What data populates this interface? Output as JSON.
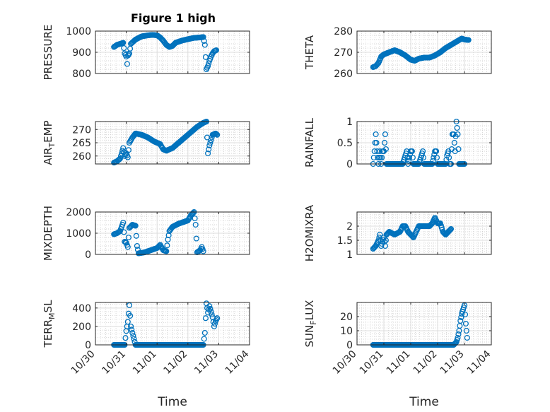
{
  "figure": {
    "title": "Figure 1 high"
  },
  "colors": {
    "marker": "#0072BD",
    "axis": "#262626",
    "grid": "#dcdcdc"
  },
  "chart_data": [
    {
      "id": "pressure",
      "type": "scatter",
      "ylabel": "PRESSURE",
      "xlabel": "",
      "xlim": [
        0,
        5
      ],
      "ylim": [
        800,
        1000
      ],
      "yticks": [
        800,
        900,
        1000
      ],
      "ytick_labels": [
        "800",
        "900",
        "1000"
      ],
      "xticks": [
        0,
        1,
        2,
        3,
        4,
        5
      ],
      "xtick_labels": [],
      "keypoints": [
        [
          0.6,
          925
        ],
        [
          0.7,
          935
        ],
        [
          0.8,
          940
        ],
        [
          0.85,
          942
        ],
        [
          0.9,
          945
        ],
        [
          0.95,
          895
        ],
        [
          1.0,
          880
        ],
        [
          1.03,
          845
        ],
        [
          1.06,
          885
        ],
        [
          1.1,
          895
        ],
        [
          1.15,
          940
        ],
        [
          1.3,
          960
        ],
        [
          1.5,
          975
        ],
        [
          1.7,
          980
        ],
        [
          1.85,
          982
        ],
        [
          2.0,
          980
        ],
        [
          2.1,
          970
        ],
        [
          2.2,
          955
        ],
        [
          2.3,
          935
        ],
        [
          2.4,
          925
        ],
        [
          2.5,
          930
        ],
        [
          2.6,
          945
        ],
        [
          2.8,
          955
        ],
        [
          3.0,
          962
        ],
        [
          3.2,
          968
        ],
        [
          3.4,
          970
        ],
        [
          3.5,
          972
        ],
        [
          3.55,
          935
        ],
        [
          3.6,
          820
        ],
        [
          3.65,
          835
        ],
        [
          3.7,
          860
        ],
        [
          3.75,
          880
        ],
        [
          3.8,
          895
        ],
        [
          3.85,
          905
        ],
        [
          3.92,
          910
        ]
      ]
    },
    {
      "id": "theta",
      "type": "scatter",
      "ylabel": "THETA",
      "xlabel": "",
      "xlim": [
        0,
        5
      ],
      "ylim": [
        260,
        280
      ],
      "yticks": [
        260,
        270,
        280
      ],
      "ytick_labels": [
        "260",
        "270",
        "280"
      ],
      "xticks": [
        0,
        1,
        2,
        3,
        4,
        5
      ],
      "xtick_labels": [],
      "keypoints": [
        [
          0.6,
          263
        ],
        [
          0.7,
          263.5
        ],
        [
          0.8,
          265
        ],
        [
          0.9,
          268
        ],
        [
          1.0,
          269
        ],
        [
          1.2,
          270
        ],
        [
          1.4,
          271
        ],
        [
          1.6,
          270
        ],
        [
          1.8,
          268.5
        ],
        [
          2.0,
          266.5
        ],
        [
          2.15,
          266
        ],
        [
          2.3,
          267
        ],
        [
          2.5,
          267.5
        ],
        [
          2.7,
          267.5
        ],
        [
          2.9,
          268.5
        ],
        [
          3.1,
          270
        ],
        [
          3.3,
          272
        ],
        [
          3.5,
          273.5
        ],
        [
          3.7,
          275
        ],
        [
          3.9,
          276.5
        ],
        [
          4.0,
          276
        ],
        [
          4.15,
          275.8
        ]
      ]
    },
    {
      "id": "air_temp",
      "type": "scatter",
      "ylabel": "AIR",
      "ylabel_sub": "T",
      "ylabel_tail": "EMP",
      "xlabel": "",
      "xlim": [
        0,
        5
      ],
      "ylim": [
        257,
        273
      ],
      "yticks": [
        260,
        265,
        270
      ],
      "ytick_labels": [
        "260",
        "265",
        "270"
      ],
      "xticks": [
        0,
        1,
        2,
        3,
        4,
        5
      ],
      "xtick_labels": [],
      "keypoints": [
        [
          0.6,
          257.5
        ],
        [
          0.7,
          258
        ],
        [
          0.8,
          259
        ],
        [
          0.85,
          261
        ],
        [
          0.9,
          263
        ],
        [
          0.95,
          260
        ],
        [
          1.0,
          261
        ],
        [
          1.05,
          259.5
        ],
        [
          1.1,
          265
        ],
        [
          1.2,
          267
        ],
        [
          1.3,
          268.5
        ],
        [
          1.5,
          268
        ],
        [
          1.7,
          267
        ],
        [
          1.9,
          265.5
        ],
        [
          2.1,
          264.5
        ],
        [
          2.2,
          262.5
        ],
        [
          2.3,
          262
        ],
        [
          2.5,
          263
        ],
        [
          2.7,
          265
        ],
        [
          2.9,
          267
        ],
        [
          3.1,
          269
        ],
        [
          3.3,
          271
        ],
        [
          3.5,
          272.5
        ],
        [
          3.6,
          273
        ],
        [
          3.65,
          261
        ],
        [
          3.7,
          264
        ],
        [
          3.8,
          268
        ],
        [
          3.9,
          268.5
        ],
        [
          3.95,
          268
        ]
      ]
    },
    {
      "id": "rainfall",
      "type": "scatter",
      "ylabel": "RAINFALL",
      "xlabel": "",
      "xlim": [
        0,
        5
      ],
      "ylim": [
        0,
        1
      ],
      "yticks": [
        0,
        0.5,
        1
      ],
      "ytick_labels": [
        "0",
        "0.5",
        "1"
      ],
      "xticks": [
        0,
        1,
        2,
        3,
        4,
        5
      ],
      "xtick_labels": [],
      "keypoints": [
        [
          0.6,
          0
        ],
        [
          0.65,
          0.3
        ],
        [
          0.7,
          0.7
        ],
        [
          0.75,
          0.3
        ],
        [
          0.8,
          0
        ],
        [
          0.85,
          0.3
        ],
        [
          0.9,
          0
        ],
        [
          0.95,
          0.3
        ],
        [
          1.0,
          0.3
        ],
        [
          1.05,
          0.7
        ],
        [
          1.1,
          0
        ],
        [
          1.3,
          0
        ],
        [
          1.5,
          0
        ],
        [
          1.7,
          0
        ],
        [
          1.8,
          0.2
        ],
        [
          1.85,
          0.3
        ],
        [
          1.9,
          0
        ],
        [
          2.0,
          0.3
        ],
        [
          2.05,
          0.3
        ],
        [
          2.1,
          0
        ],
        [
          2.2,
          0
        ],
        [
          2.3,
          0
        ],
        [
          2.4,
          0.2
        ],
        [
          2.45,
          0.3
        ],
        [
          2.5,
          0
        ],
        [
          2.6,
          0
        ],
        [
          2.7,
          0
        ],
        [
          2.8,
          0
        ],
        [
          2.9,
          0.3
        ],
        [
          2.95,
          0.3
        ],
        [
          3.0,
          0
        ],
        [
          3.1,
          0
        ],
        [
          3.2,
          0
        ],
        [
          3.3,
          0
        ],
        [
          3.35,
          0.2
        ],
        [
          3.4,
          0.3
        ],
        [
          3.45,
          0
        ],
        [
          3.5,
          0
        ],
        [
          3.55,
          0.7
        ],
        [
          3.6,
          0.7
        ],
        [
          3.65,
          0.3
        ],
        [
          3.7,
          1.0
        ],
        [
          3.75,
          0.7
        ],
        [
          3.8,
          0
        ],
        [
          3.9,
          0
        ],
        [
          4.0,
          0
        ]
      ]
    },
    {
      "id": "mixdepth",
      "type": "scatter",
      "ylabel": "MIXDEPTH",
      "xlabel": "",
      "xlim": [
        0,
        5
      ],
      "ylim": [
        0,
        2000
      ],
      "yticks": [
        0,
        1000,
        2000
      ],
      "ytick_labels": [
        "0",
        "1000",
        "2000"
      ],
      "xticks": [
        0,
        1,
        2,
        3,
        4,
        5
      ],
      "xtick_labels": [],
      "keypoints": [
        [
          0.6,
          950
        ],
        [
          0.7,
          1000
        ],
        [
          0.8,
          1100
        ],
        [
          0.85,
          1300
        ],
        [
          0.9,
          1500
        ],
        [
          0.95,
          600
        ],
        [
          1.0,
          550
        ],
        [
          1.05,
          350
        ],
        [
          1.1,
          1250
        ],
        [
          1.2,
          1400
        ],
        [
          1.3,
          1350
        ],
        [
          1.35,
          400
        ],
        [
          1.4,
          50
        ],
        [
          1.6,
          100
        ],
        [
          1.8,
          200
        ],
        [
          2.0,
          300
        ],
        [
          2.1,
          450
        ],
        [
          2.2,
          200
        ],
        [
          2.3,
          150
        ],
        [
          2.35,
          700
        ],
        [
          2.4,
          1100
        ],
        [
          2.5,
          1300
        ],
        [
          2.7,
          1450
        ],
        [
          2.9,
          1550
        ],
        [
          3.0,
          1600
        ],
        [
          3.1,
          1850
        ],
        [
          3.2,
          2000
        ],
        [
          3.25,
          1400
        ],
        [
          3.3,
          100
        ],
        [
          3.4,
          200
        ],
        [
          3.45,
          350
        ],
        [
          3.5,
          150
        ]
      ]
    },
    {
      "id": "h2omixra",
      "type": "scatter",
      "ylabel": "H2OMIXRA",
      "xlabel": "",
      "xlim": [
        0,
        5
      ],
      "ylim": [
        1,
        2.5
      ],
      "yticks": [
        1,
        1.5,
        2
      ],
      "ytick_labels": [
        "1",
        "1.5",
        "2"
      ],
      "xticks": [
        0,
        1,
        2,
        3,
        4,
        5
      ],
      "xtick_labels": [],
      "keypoints": [
        [
          0.6,
          1.2
        ],
        [
          0.7,
          1.3
        ],
        [
          0.75,
          1.4
        ],
        [
          0.8,
          1.5
        ],
        [
          0.85,
          1.7
        ],
        [
          0.9,
          1.3
        ],
        [
          1.0,
          1.6
        ],
        [
          1.05,
          1.3
        ],
        [
          1.1,
          1.7
        ],
        [
          1.2,
          1.8
        ],
        [
          1.4,
          1.7
        ],
        [
          1.6,
          1.8
        ],
        [
          1.7,
          2.0
        ],
        [
          1.8,
          2.0
        ],
        [
          1.9,
          1.8
        ],
        [
          2.0,
          1.7
        ],
        [
          2.1,
          1.6
        ],
        [
          2.2,
          1.8
        ],
        [
          2.3,
          2.0
        ],
        [
          2.5,
          2.0
        ],
        [
          2.7,
          2.0
        ],
        [
          2.8,
          2.1
        ],
        [
          2.9,
          2.3
        ],
        [
          3.0,
          2.1
        ],
        [
          3.1,
          2.1
        ],
        [
          3.2,
          1.8
        ],
        [
          3.3,
          1.7
        ],
        [
          3.4,
          1.8
        ],
        [
          3.5,
          1.9
        ]
      ]
    },
    {
      "id": "terr_msl",
      "type": "scatter",
      "ylabel": "TERR",
      "ylabel_sub": "M",
      "ylabel_tail": "SL",
      "xlabel": "Time",
      "xlim": [
        0,
        5
      ],
      "ylim": [
        0,
        460
      ],
      "yticks": [
        0,
        200,
        400
      ],
      "ytick_labels": [
        "0",
        "200",
        "400"
      ],
      "xticks": [
        0,
        1,
        2,
        3,
        4,
        5
      ],
      "xtick_labels": [
        "10/30",
        "10/31",
        "11/01",
        "11/02",
        "11/03",
        "11/04"
      ],
      "keypoints": [
        [
          0.6,
          0
        ],
        [
          0.8,
          0
        ],
        [
          0.95,
          0
        ],
        [
          1.0,
          150
        ],
        [
          1.05,
          250
        ],
        [
          1.1,
          430
        ],
        [
          1.15,
          200
        ],
        [
          1.2,
          130
        ],
        [
          1.3,
          0
        ],
        [
          1.6,
          0
        ],
        [
          2.0,
          0
        ],
        [
          2.5,
          0
        ],
        [
          3.0,
          0
        ],
        [
          3.4,
          0
        ],
        [
          3.5,
          0
        ],
        [
          3.55,
          130
        ],
        [
          3.6,
          450
        ],
        [
          3.65,
          350
        ],
        [
          3.7,
          420
        ],
        [
          3.8,
          300
        ],
        [
          3.85,
          200
        ],
        [
          3.9,
          260
        ],
        [
          3.95,
          290
        ]
      ]
    },
    {
      "id": "sun_flux",
      "type": "scatter",
      "ylabel": "SUN",
      "ylabel_sub": "F",
      "ylabel_tail": "LUX",
      "xlabel": "Time",
      "xlim": [
        0,
        5
      ],
      "ylim": [
        0,
        30
      ],
      "yticks": [
        0,
        10,
        20
      ],
      "ytick_labels": [
        "0",
        "10",
        "20"
      ],
      "xticks": [
        0,
        1,
        2,
        3,
        4,
        5
      ],
      "xtick_labels": [
        "10/30",
        "10/31",
        "11/01",
        "11/02",
        "11/03",
        "11/04"
      ],
      "keypoints": [
        [
          0.6,
          0
        ],
        [
          1.0,
          0
        ],
        [
          1.5,
          0
        ],
        [
          2.0,
          0
        ],
        [
          2.5,
          0
        ],
        [
          3.0,
          0
        ],
        [
          3.5,
          0
        ],
        [
          3.6,
          0
        ],
        [
          3.7,
          2
        ],
        [
          3.75,
          5
        ],
        [
          3.8,
          10
        ],
        [
          3.85,
          17
        ],
        [
          3.9,
          22
        ],
        [
          3.95,
          25
        ],
        [
          4.0,
          28
        ],
        [
          4.05,
          15
        ],
        [
          4.1,
          5
        ]
      ]
    }
  ]
}
